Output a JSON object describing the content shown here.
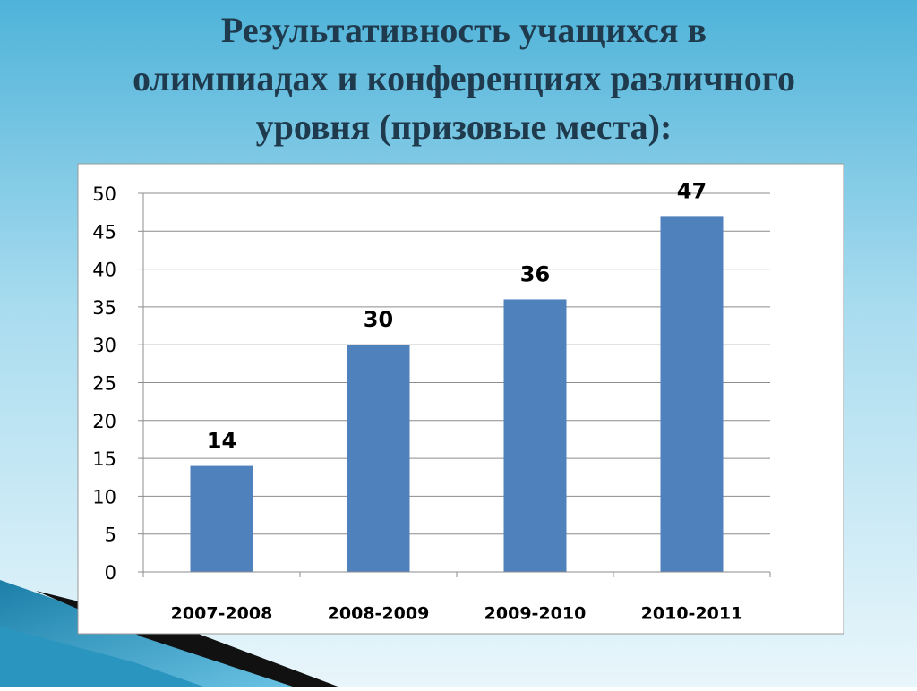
{
  "chart_data": {
    "type": "bar",
    "title": [
      "Результативность учащихся в",
      "олимпиадах и конференциях различного",
      "уровня (призовые места):"
    ],
    "categories": [
      "2007-2008",
      "2008-2009",
      "2009-2010",
      "2010-2011"
    ],
    "values": [
      14,
      30,
      36,
      47
    ],
    "color": "#4f81bd",
    "ylim": [
      0,
      50
    ],
    "yticks": [
      0,
      5,
      10,
      15,
      20,
      25,
      30,
      35,
      40,
      45,
      50
    ],
    "grid": true
  }
}
